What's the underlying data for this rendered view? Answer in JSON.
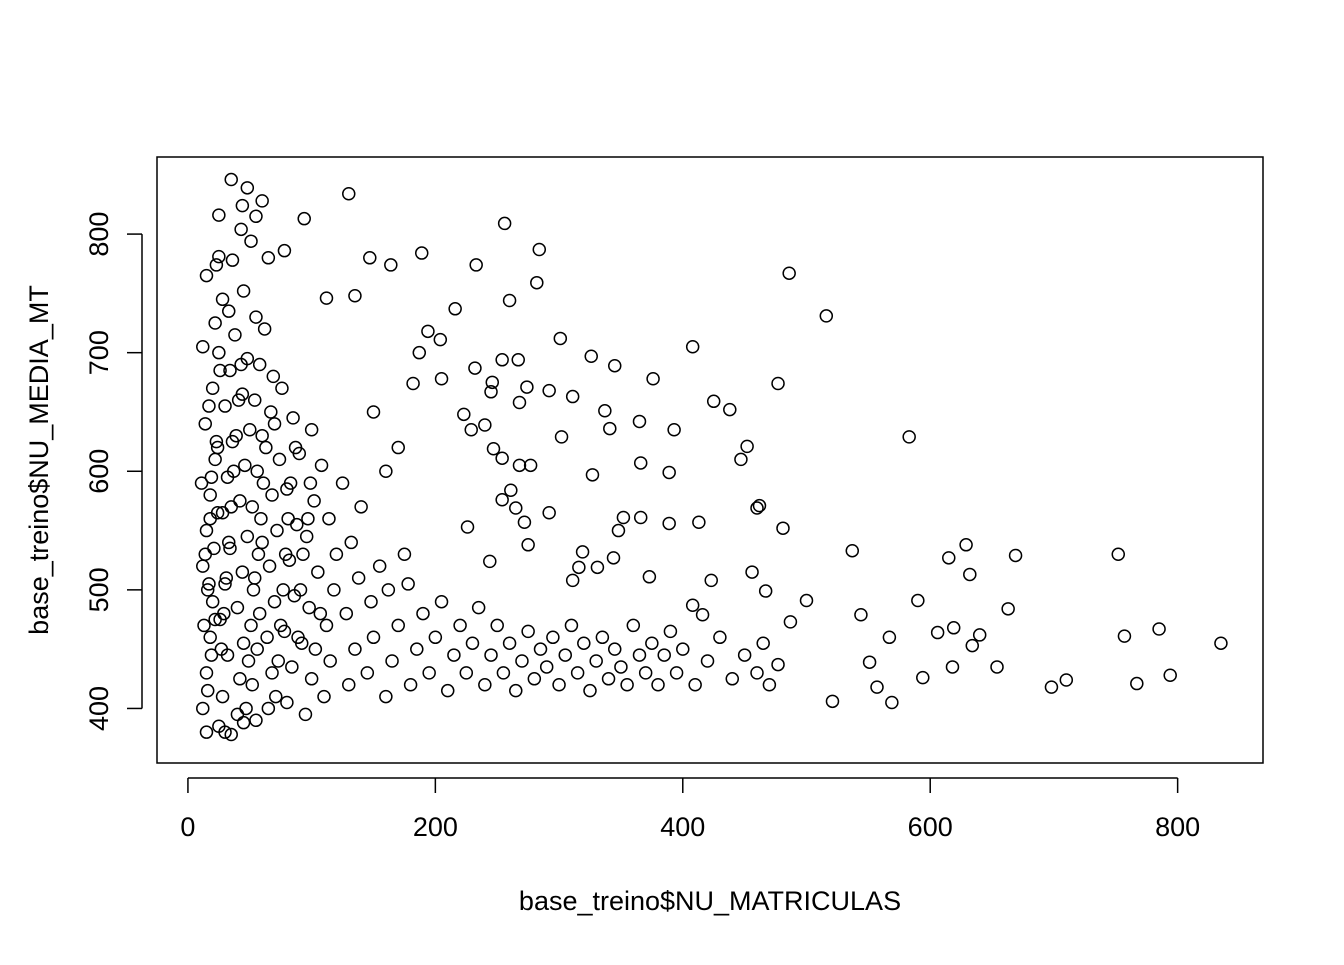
{
  "chart_data": {
    "type": "scatter",
    "x_label": "base_treino$NU_MATRICULAS",
    "y_label": "base_treino$NU_MEDIA_MT",
    "xlim": [
      -25,
      869
    ],
    "ylim": [
      354,
      865
    ],
    "xticks": [
      0,
      200,
      400,
      600,
      800
    ],
    "yticks": [
      400,
      500,
      600,
      700,
      800
    ],
    "color": "#000000",
    "x": [
      12,
      15,
      18,
      20,
      12,
      15,
      18,
      22,
      14,
      20,
      25,
      30,
      28,
      32,
      26,
      30,
      34,
      28,
      32,
      36,
      30,
      34,
      38,
      40,
      42,
      45,
      40,
      44,
      48,
      42,
      46,
      50,
      44,
      48,
      55,
      52,
      56,
      58,
      54,
      60,
      52,
      56,
      60,
      54,
      58,
      62,
      65,
      68,
      64,
      70,
      66,
      72,
      68,
      74,
      70,
      76,
      80,
      84,
      78,
      86,
      82,
      88,
      80,
      90,
      85,
      95,
      100,
      92,
      98,
      105,
      96,
      102,
      108,
      100,
      110,
      115,
      112,
      118,
      120,
      114,
      125,
      130,
      135,
      128,
      138,
      132,
      140,
      145,
      150,
      148,
      155,
      160,
      165,
      170,
      162,
      175,
      180,
      185,
      190,
      178,
      195,
      200,
      205,
      210,
      215,
      220,
      225,
      230,
      235,
      240,
      245,
      250,
      255,
      260,
      265,
      270,
      275,
      280,
      285,
      290,
      295,
      300,
      305,
      310,
      315,
      320,
      325,
      330,
      335,
      340,
      345,
      350,
      355,
      360,
      365,
      370,
      375,
      380,
      385,
      390,
      395,
      400,
      410,
      420,
      430,
      440,
      450,
      460,
      465,
      470,
      16,
      19,
      22,
      17,
      21,
      24,
      19,
      23,
      17,
      26,
      13,
      16,
      14,
      18,
      11,
      24,
      27,
      29,
      31,
      33,
      35,
      37,
      39,
      41,
      43,
      47,
      49,
      51,
      53,
      57,
      59,
      61,
      63,
      67,
      69,
      71,
      73,
      75,
      77,
      79,
      81,
      83,
      87,
      89,
      91,
      93,
      97,
      99,
      103,
      107,
      15,
      25,
      35,
      45,
      12,
      22,
      28,
      33,
      45,
      55,
      835,
      794,
      785,
      767,
      757,
      752,
      710,
      698,
      669,
      663,
      654,
      640,
      634,
      632,
      629,
      619,
      618,
      615,
      606,
      594,
      590,
      583,
      569,
      567,
      557,
      551,
      544,
      537,
      521,
      516,
      500,
      486,
      487,
      477,
      481,
      477,
      460,
      452,
      447,
      438,
      425,
      413,
      408,
      376,
      393,
      389,
      389,
      366,
      365,
      341,
      345,
      327,
      326,
      301,
      302,
      282,
      284,
      256,
      260,
      233,
      130,
      35,
      94,
      48,
      25,
      147,
      164,
      189,
      216,
      112,
      135,
      78,
      60,
      44,
      55,
      43,
      51,
      65,
      36,
      15,
      23,
      25,
      229,
      247,
      254,
      268,
      277,
      265,
      272,
      292,
      254,
      226,
      244,
      275,
      261,
      316,
      319,
      344,
      331,
      311,
      348,
      352,
      366,
      373,
      408,
      423,
      456,
      462,
      467,
      416,
      223,
      240,
      254,
      267,
      232,
      245,
      274,
      268,
      246,
      292,
      311,
      337,
      182,
      187,
      205,
      204,
      194,
      150,
      170,
      160
    ],
    "y": [
      400,
      430,
      460,
      490,
      520,
      550,
      580,
      610,
      640,
      670,
      700,
      380,
      410,
      445,
      475,
      505,
      535,
      565,
      595,
      625,
      655,
      685,
      715,
      395,
      425,
      455,
      485,
      515,
      545,
      575,
      605,
      635,
      665,
      695,
      390,
      420,
      450,
      480,
      510,
      540,
      570,
      600,
      630,
      660,
      690,
      720,
      400,
      430,
      460,
      490,
      520,
      550,
      580,
      610,
      640,
      670,
      405,
      435,
      465,
      495,
      525,
      555,
      585,
      615,
      645,
      395,
      425,
      455,
      485,
      515,
      545,
      575,
      605,
      635,
      410,
      440,
      470,
      500,
      530,
      560,
      590,
      420,
      450,
      480,
      510,
      540,
      570,
      430,
      460,
      490,
      520,
      410,
      440,
      470,
      500,
      530,
      420,
      450,
      480,
      505,
      430,
      460,
      490,
      415,
      445,
      470,
      430,
      455,
      485,
      420,
      445,
      470,
      430,
      455,
      415,
      440,
      465,
      425,
      450,
      435,
      460,
      420,
      445,
      470,
      430,
      455,
      415,
      440,
      460,
      425,
      450,
      435,
      420,
      470,
      445,
      430,
      455,
      420,
      445,
      465,
      430,
      450,
      420,
      440,
      460,
      425,
      445,
      430,
      455,
      420,
      415,
      445,
      475,
      505,
      535,
      565,
      595,
      625,
      655,
      685,
      470,
      500,
      530,
      560,
      590,
      620,
      450,
      480,
      510,
      540,
      570,
      600,
      630,
      660,
      690,
      400,
      440,
      470,
      500,
      530,
      560,
      590,
      620,
      650,
      680,
      410,
      440,
      470,
      500,
      530,
      560,
      590,
      620,
      460,
      500,
      530,
      560,
      590,
      450,
      480,
      380,
      385,
      378,
      388,
      705,
      725,
      745,
      735,
      752,
      730,
      455,
      428,
      467,
      421,
      461,
      530,
      424,
      418,
      529,
      484,
      435,
      462,
      453,
      513,
      538,
      468,
      435,
      527,
      464,
      426,
      491,
      629,
      405,
      460,
      418,
      439,
      479,
      533,
      406,
      731,
      491,
      767,
      473,
      437,
      552,
      674,
      569,
      621,
      610,
      652,
      659,
      557,
      705,
      678,
      635,
      599,
      556,
      607,
      642,
      636,
      689,
      597,
      697,
      712,
      629,
      759,
      787,
      809,
      744,
      774,
      834,
      846,
      813,
      839,
      816,
      780,
      774,
      784,
      737,
      746,
      748,
      786,
      828,
      824,
      815,
      804,
      794,
      780,
      778,
      765,
      774,
      781,
      635,
      619,
      611,
      605,
      605,
      569,
      557,
      565,
      576,
      553,
      524,
      538,
      584,
      519,
      532,
      527,
      519,
      508,
      550,
      561,
      561,
      511,
      487,
      508,
      515,
      571,
      499,
      479,
      648,
      639,
      694,
      694,
      687,
      667,
      671,
      658,
      675,
      668,
      663,
      651,
      674,
      700,
      678,
      711,
      718,
      650,
      620,
      600
    ]
  }
}
